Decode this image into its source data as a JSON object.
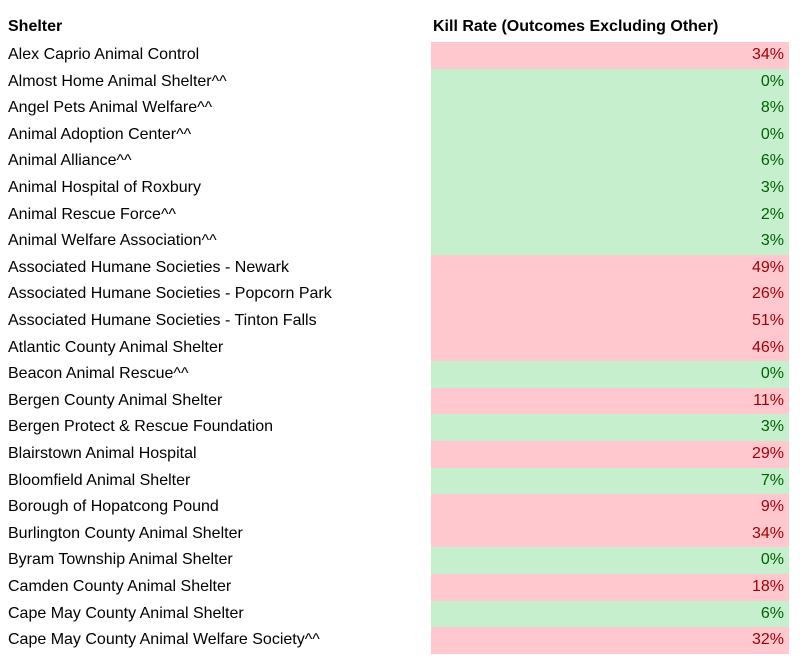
{
  "table": {
    "header": [
      "Shelter",
      "Kill Rate (Outcomes Excluding Other)"
    ],
    "rows": [
      [
        "Alex Caprio Animal Control",
        "34%"
      ],
      [
        "Almost Home Animal Shelter^^",
        "0%"
      ],
      [
        "Angel Pets Animal Welfare^^",
        "8%"
      ],
      [
        "Animal Adoption Center^^",
        "0%"
      ],
      [
        "Animal Alliance^^",
        "6%"
      ],
      [
        "Animal Hospital of Roxbury",
        "3%"
      ],
      [
        "Animal Rescue Force^^",
        "2%"
      ],
      [
        "Animal Welfare Association^^",
        "3%"
      ],
      [
        "Associated Humane Societies - Newark",
        "49%"
      ],
      [
        "Associated Humane Societies - Popcorn Park",
        "26%"
      ],
      [
        "Associated Humane Societies - Tinton Falls",
        "51%"
      ],
      [
        "Atlantic County Animal Shelter",
        "46%"
      ],
      [
        "Beacon Animal Rescue^^",
        "0%"
      ],
      [
        "Bergen County Animal Shelter",
        "11%"
      ],
      [
        "Bergen Protect & Rescue Foundation",
        "3%"
      ],
      [
        "Blairstown Animal Hospital",
        "29%"
      ],
      [
        "Bloomfield Animal Shelter",
        "7%"
      ],
      [
        "Borough of Hopatcong Pound",
        "9%"
      ],
      [
        "Burlington County Animal Shelter",
        "34%"
      ],
      [
        "Byram Township Animal Shelter",
        "0%"
      ],
      [
        "Camden County Animal Shelter",
        "18%"
      ],
      [
        "Cape May County Animal Shelter",
        "6%"
      ],
      [
        "Cape May  County Animal Welfare Society^^",
        "32%"
      ]
    ],
    "fills": [
      "#ffc7ce",
      "#c6efce",
      "#c6efce",
      "#c6efce",
      "#c6efce",
      "#c6efce",
      "#c6efce",
      "#c6efce",
      "#ffc7ce",
      "#ffc7ce",
      "#ffc7ce",
      "#ffc7ce",
      "#c6efce",
      "#ffc7ce",
      "#c6efce",
      "#ffc7ce",
      "#c6efce",
      "#ffc7ce",
      "#ffc7ce",
      "#c6efce",
      "#ffc7ce",
      "#c6efce",
      "#ffc7ce"
    ]
  }
}
